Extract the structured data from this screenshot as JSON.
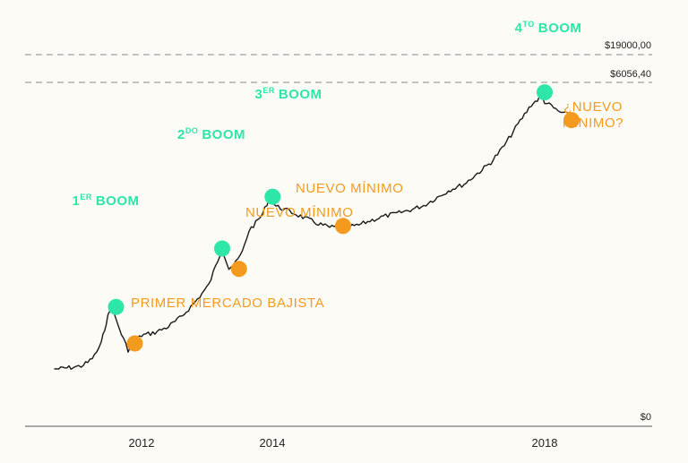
{
  "chart_data": {
    "type": "line",
    "ylabel": "",
    "xlabel": "",
    "title": "",
    "x_ticks": [
      "2012",
      "2014",
      "2018"
    ],
    "y_ticks": [
      "$0"
    ],
    "reference_lines": [
      {
        "label": "$19000,00",
        "value": 19000
      },
      {
        "label": "$6056,40",
        "value": 6056.4
      }
    ],
    "series": [
      {
        "x": [
          2010.7,
          2010.8,
          2010.95,
          2011.1,
          2011.2,
          2011.3,
          2011.4,
          2011.45,
          2011.5,
          2011.55,
          2011.62,
          2011.7,
          2011.8,
          2011.9,
          2012.0,
          2012.2,
          2012.4,
          2012.6,
          2012.8,
          2013.0,
          2013.2,
          2013.3,
          2013.4,
          2013.5,
          2013.6,
          2013.7,
          2013.8,
          2013.9,
          2014.0,
          2014.2,
          2014.4,
          2014.6,
          2014.8,
          2015.0,
          2015.2,
          2015.4,
          2015.6,
          2015.8,
          2016.0,
          2016.2,
          2016.4,
          2016.6,
          2016.8,
          2017.0,
          2017.2,
          2017.4,
          2017.6,
          2017.8,
          2017.95,
          2018.0,
          2018.1,
          2018.2,
          2018.35,
          2018.5
        ],
        "y": [
          0.0,
          0.05,
          0.2,
          0.4,
          0.9,
          1.8,
          3.5,
          5.5,
          7.2,
          8.5,
          6.8,
          4.8,
          2.6,
          3.8,
          4.6,
          5.0,
          5.8,
          7.2,
          9.2,
          11.5,
          16.5,
          13.8,
          14.5,
          16.0,
          19.0,
          20.0,
          21.2,
          23.4,
          22.3,
          21.6,
          20.8,
          20.0,
          19.4,
          19.5,
          19.6,
          20.3,
          20.9,
          21.3,
          21.8,
          22.4,
          23.5,
          24.6,
          25.3,
          26.8,
          28.3,
          30.6,
          33.5,
          36.2,
          37.3,
          36.6,
          36.0,
          35.3,
          34.8,
          34.0
        ]
      }
    ],
    "annotations": [
      {
        "kind": "boom",
        "text": "1",
        "sup": "ER",
        "tail": "BOOM",
        "x": 2011.62,
        "y": 8.5
      },
      {
        "kind": "boom",
        "text": "2",
        "sup": "DO",
        "tail": "BOOM",
        "x": 2013.2,
        "y": 16.5
      },
      {
        "kind": "boom",
        "text": "3",
        "sup": "ER",
        "tail": "BOOM",
        "x": 2013.95,
        "y": 23.6
      },
      {
        "kind": "boom",
        "text": "4",
        "sup": "TO",
        "tail": "BOOM",
        "x": 2018.0,
        "y": 37.9
      },
      {
        "kind": "min",
        "label": "PRIMER MERCADO BAJISTA",
        "x": 2011.9,
        "y": 3.5
      },
      {
        "kind": "min",
        "label": "NUEVO MÍNIMO",
        "x": 2013.45,
        "y": 13.7
      },
      {
        "kind": "min",
        "label": "NUEVO MÍNIMO",
        "x": 2015.0,
        "y": 19.6
      },
      {
        "kind": "min",
        "label": "¿NUEVO",
        "label2": "MÍNIMO?",
        "x": 2018.4,
        "y": 34.1
      }
    ],
    "colors": {
      "line": "#1a1a1a",
      "boom": "#2ee6a8",
      "minimum": "#f39a1f",
      "reference": "#7a7a7a"
    },
    "grid": false,
    "legend": "none"
  }
}
